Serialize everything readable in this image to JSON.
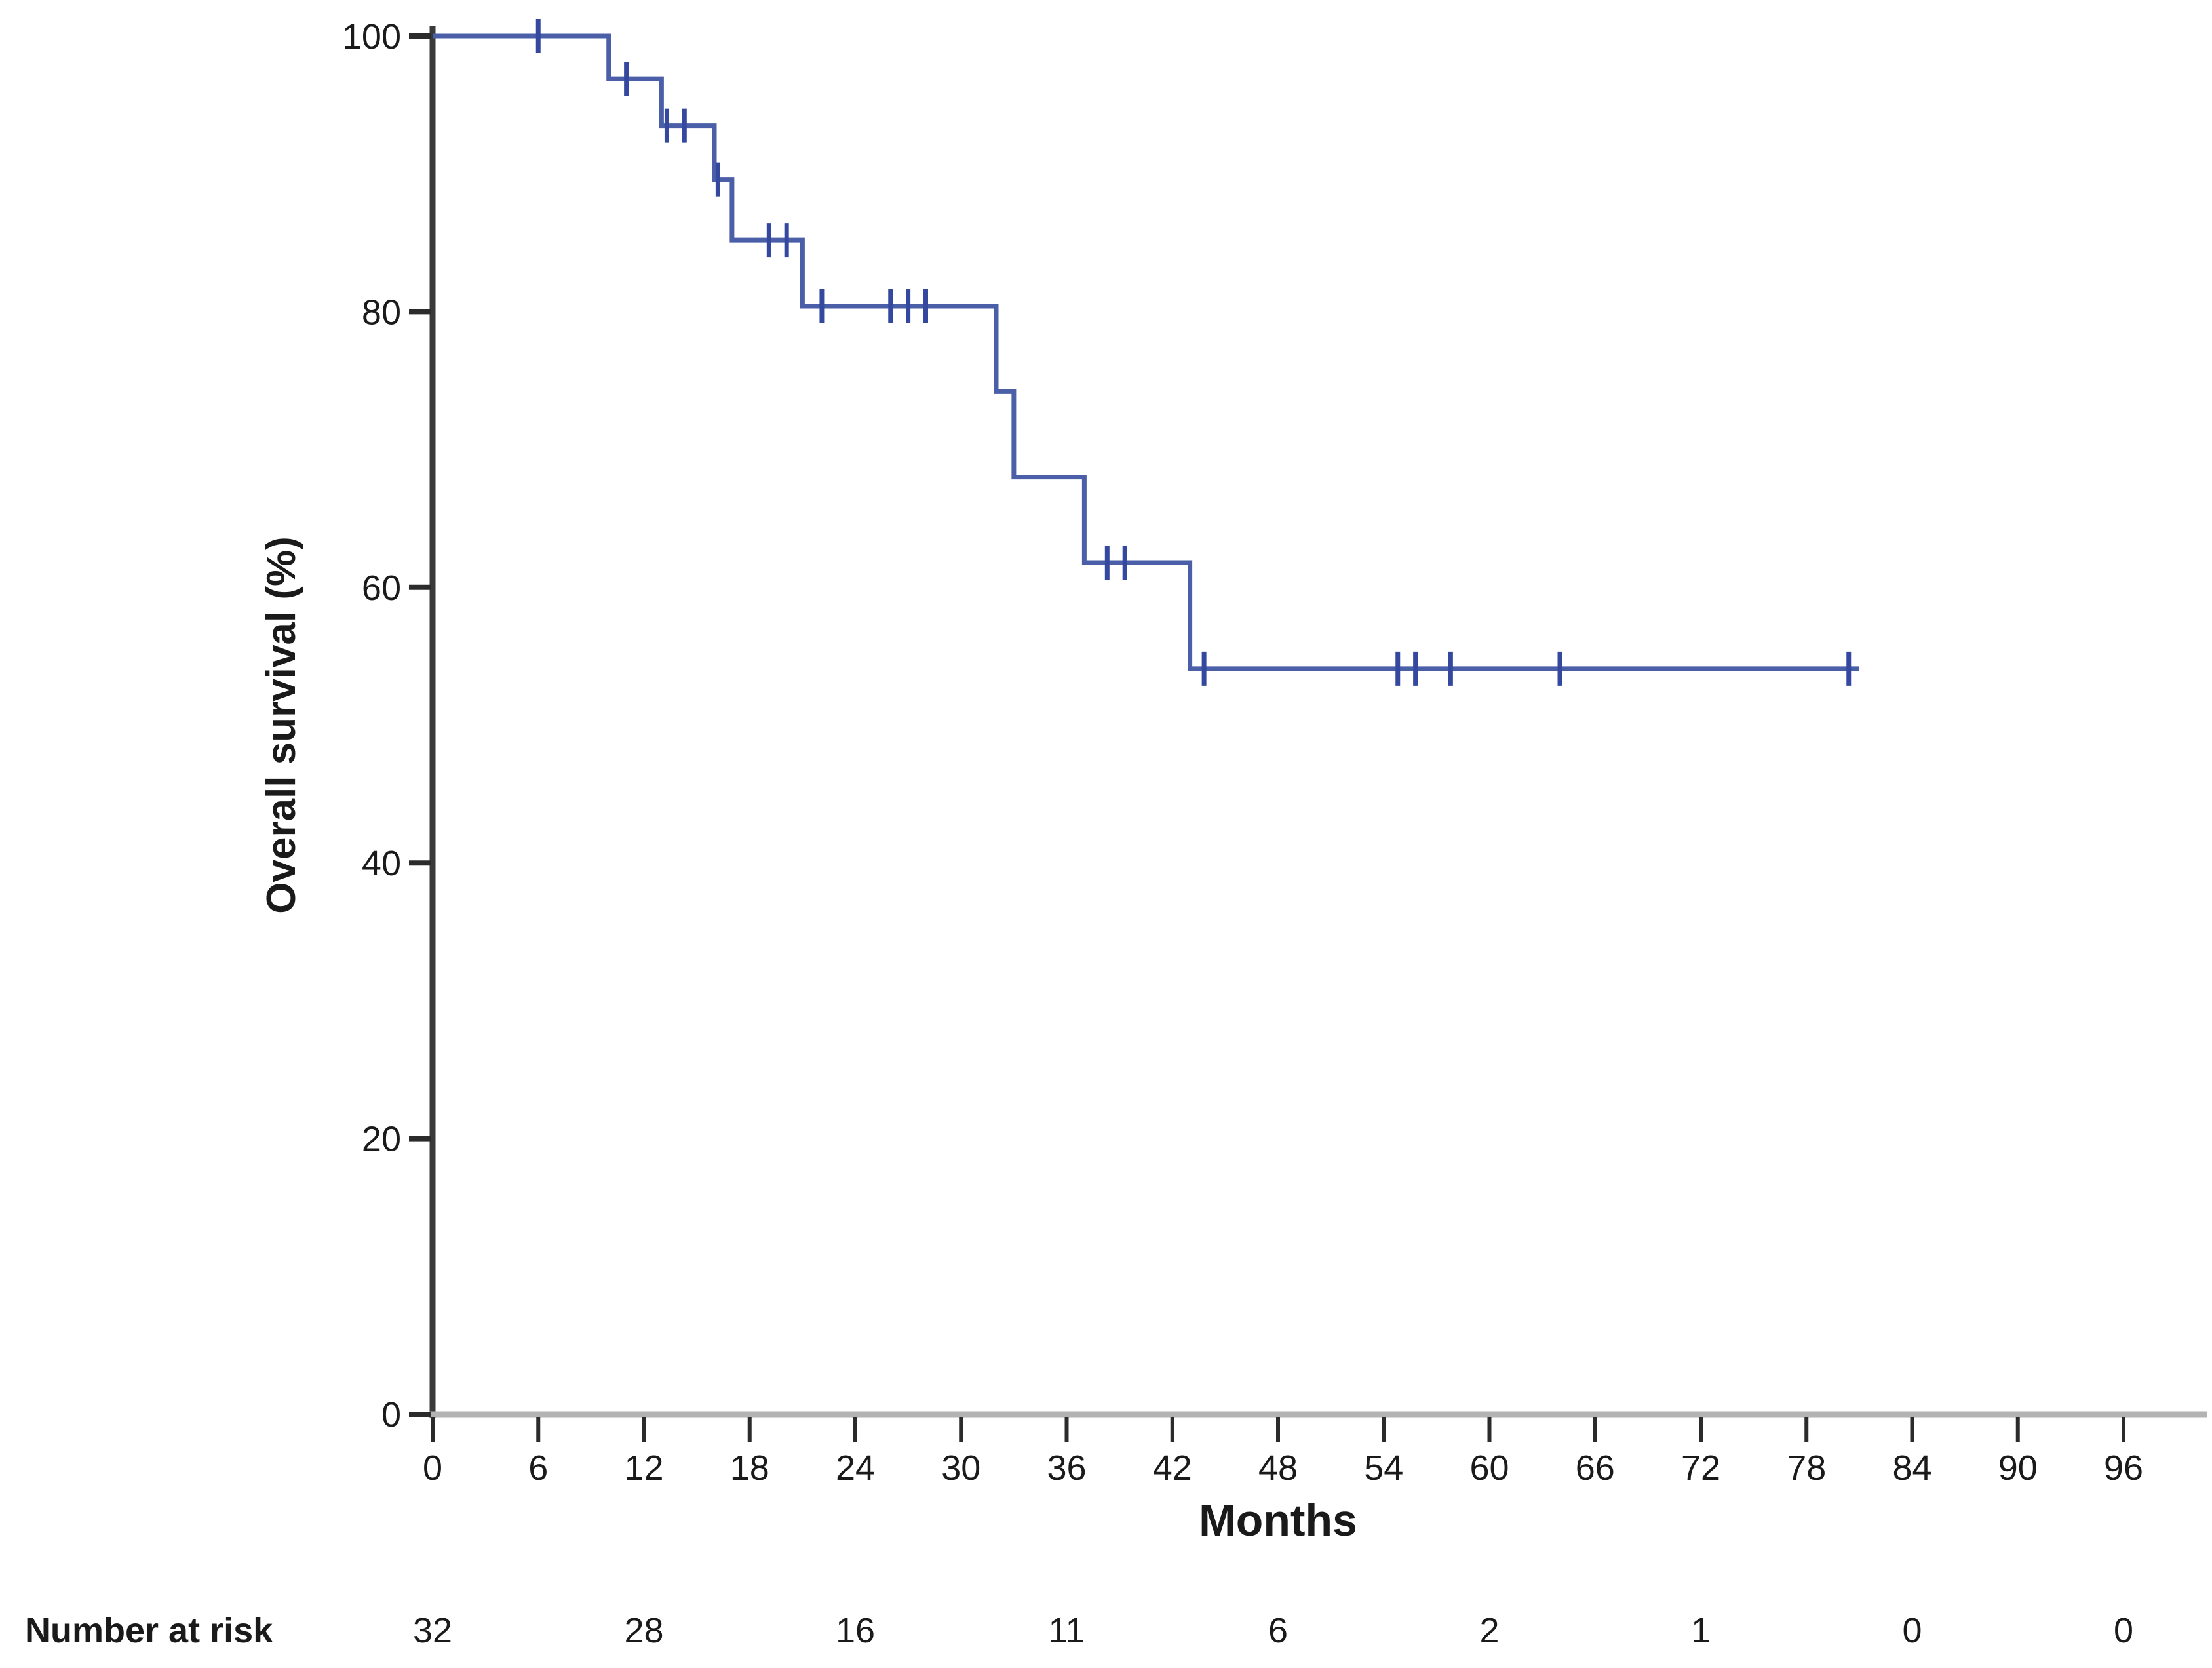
{
  "figure": {
    "background": "#ffffff"
  },
  "chart_data": {
    "type": "line",
    "subtype": "kaplan-meier-step",
    "title": "",
    "xlabel": "Months",
    "ylabel": "Overall survival (%)",
    "xlim": [
      0,
      96
    ],
    "ylim": [
      0,
      100
    ],
    "x_ticks": [
      0,
      6,
      12,
      18,
      24,
      30,
      36,
      42,
      48,
      54,
      60,
      66,
      72,
      78,
      84,
      90,
      96
    ],
    "y_ticks": [
      0,
      20,
      40,
      60,
      80,
      100
    ],
    "grid": "off",
    "legend": "none",
    "colors": {
      "curve": "#4a5fa8",
      "censor": "#3548a0",
      "y_axis": "#3a3a3a",
      "x_axis": "#b3b3b3",
      "tick": "#2b2b2b",
      "label": "#1a1a1a"
    },
    "series": [
      {
        "name": "Overall survival",
        "steps": [
          {
            "t": 0,
            "s": 100
          },
          {
            "t": 10,
            "s": 96.9
          },
          {
            "t": 13,
            "s": 93.5
          },
          {
            "t": 16,
            "s": 89.6
          },
          {
            "t": 17,
            "s": 85.2
          },
          {
            "t": 21,
            "s": 80.4
          },
          {
            "t": 32,
            "s": 74.2
          },
          {
            "t": 33,
            "s": 68.0
          },
          {
            "t": 37,
            "s": 61.8
          },
          {
            "t": 43,
            "s": 54.1
          }
        ],
        "end_time": 81,
        "censors": [
          [
            6,
            100
          ],
          [
            11,
            96.9
          ],
          [
            13.3,
            93.5
          ],
          [
            14.3,
            93.5
          ],
          [
            16.2,
            89.6
          ],
          [
            19.1,
            85.2
          ],
          [
            20.1,
            85.2
          ],
          [
            22.1,
            80.4
          ],
          [
            26,
            80.4
          ],
          [
            27,
            80.4
          ],
          [
            28,
            80.4
          ],
          [
            38.3,
            61.8
          ],
          [
            39.3,
            61.8
          ],
          [
            43.8,
            54.1
          ],
          [
            54.8,
            54.1
          ],
          [
            55.8,
            54.1
          ],
          [
            57.8,
            54.1
          ],
          [
            64,
            54.1
          ],
          [
            80.4,
            54.1
          ]
        ]
      }
    ],
    "number_at_risk": {
      "label": "Number at risk",
      "times": [
        0,
        12,
        24,
        36,
        48,
        60,
        72,
        84,
        96
      ],
      "values": [
        "32",
        "28",
        "16",
        "11",
        "6",
        "2",
        "1",
        "0",
        "0"
      ]
    }
  }
}
